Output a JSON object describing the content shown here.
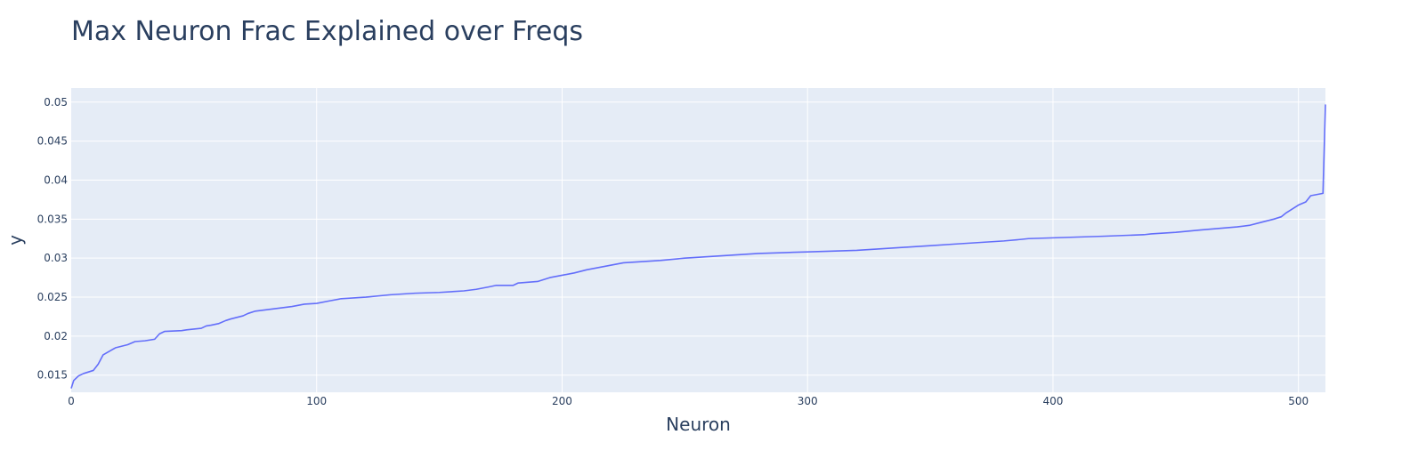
{
  "chart_data": {
    "type": "line",
    "title": "Max Neuron Frac Explained over Freqs",
    "xlabel": "Neuron",
    "ylabel": "y",
    "xlim": [
      0,
      511
    ],
    "ylim": [
      0.0128,
      0.0518
    ],
    "xticks": [
      0,
      100,
      200,
      300,
      400,
      500
    ],
    "yticks": [
      0.015,
      0.02,
      0.025,
      0.03,
      0.035,
      0.04,
      0.045,
      0.05
    ],
    "xtick_labels": [
      "0",
      "100",
      "200",
      "300",
      "400",
      "500"
    ],
    "ytick_labels": [
      "0.015",
      "0.02",
      "0.025",
      "0.03",
      "0.035",
      "0.04",
      "0.045",
      "0.05"
    ],
    "grid": true,
    "plot_bgcolor": "#e5ecf6",
    "grid_color": "#ffffff",
    "line_color": "#636efa",
    "text_color": "#2a3f5f",
    "series": [
      {
        "x": [
          0,
          1,
          3,
          5,
          9,
          11,
          13,
          18,
          23,
          26,
          30,
          34,
          36,
          38,
          45,
          47,
          53,
          55,
          57,
          60,
          63,
          65,
          70,
          72,
          75,
          80,
          90,
          95,
          100,
          105,
          110,
          120,
          130,
          140,
          150,
          160,
          165,
          170,
          173,
          180,
          182,
          190,
          195,
          200,
          205,
          210,
          215,
          220,
          225,
          230,
          240,
          250,
          260,
          270,
          280,
          290,
          300,
          310,
          320,
          330,
          340,
          350,
          360,
          370,
          380,
          387,
          390,
          400,
          420,
          437,
          440,
          450,
          460,
          475,
          480,
          485,
          490,
          493,
          495,
          497,
          500,
          503,
          505,
          510,
          511
        ],
        "y": [
          0.0133,
          0.0143,
          0.0149,
          0.0152,
          0.0156,
          0.0164,
          0.0176,
          0.0185,
          0.0189,
          0.0193,
          0.0194,
          0.0196,
          0.0203,
          0.0206,
          0.0207,
          0.0208,
          0.021,
          0.0213,
          0.0214,
          0.0216,
          0.022,
          0.0222,
          0.0226,
          0.0229,
          0.0232,
          0.0234,
          0.0238,
          0.0241,
          0.0242,
          0.0245,
          0.0248,
          0.025,
          0.0253,
          0.0255,
          0.0256,
          0.0258,
          0.026,
          0.0263,
          0.0265,
          0.0265,
          0.0268,
          0.027,
          0.0275,
          0.0278,
          0.0281,
          0.0285,
          0.0288,
          0.0291,
          0.0294,
          0.0295,
          0.0297,
          0.03,
          0.0302,
          0.0304,
          0.0306,
          0.0307,
          0.0308,
          0.0309,
          0.031,
          0.0312,
          0.0314,
          0.0316,
          0.0318,
          0.032,
          0.0322,
          0.0324,
          0.0325,
          0.0326,
          0.0328,
          0.033,
          0.0331,
          0.0333,
          0.0336,
          0.034,
          0.0342,
          0.0346,
          0.035,
          0.0353,
          0.0358,
          0.0362,
          0.0368,
          0.0372,
          0.038,
          0.0383,
          0.0497
        ]
      }
    ]
  }
}
